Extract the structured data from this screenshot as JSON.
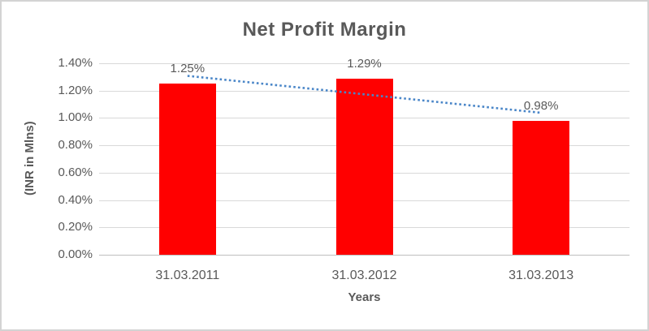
{
  "chart_data": {
    "type": "bar",
    "title": "Net Profit Margin",
    "xlabel": "Years",
    "ylabel": "(INR in Mlns)",
    "categories": [
      "31.03.2011",
      "31.03.2012",
      "31.03.2013"
    ],
    "values": [
      1.25,
      1.29,
      0.98
    ],
    "data_labels": [
      "1.25%",
      "1.29%",
      "0.98%"
    ],
    "y_ticks": [
      "1.40%",
      "1.20%",
      "1.00%",
      "0.80%",
      "0.60%",
      "0.40%",
      "0.20%",
      "0.00%"
    ],
    "ylim": [
      0,
      1.4
    ],
    "grid": true,
    "legend": "none",
    "bar_color": "#ff0000",
    "text_color": "#595959",
    "gridline_color": "#d9d9d9",
    "trendline": {
      "type": "linear",
      "style": "dotted",
      "color": "#4a86c8",
      "start_value": 1.308,
      "end_value": 1.038
    }
  }
}
